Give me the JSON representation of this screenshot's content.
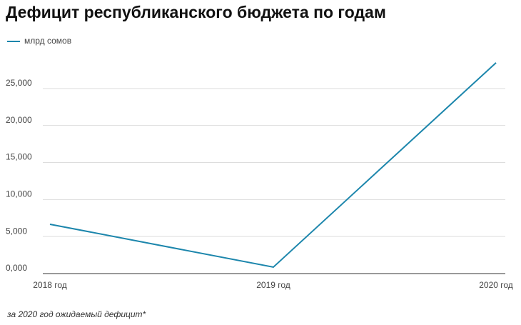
{
  "chart_data": {
    "type": "line",
    "title": "Дефицит республиканского бюджета по годам",
    "categories": [
      "2018 год",
      "2019 год",
      "2020 год"
    ],
    "series": [
      {
        "name": "млрд сомов",
        "color": "#1c86ac",
        "values": [
          6660,
          870,
          28470
        ]
      }
    ],
    "ylim": [
      0,
      30000
    ],
    "yticks": [
      {
        "value": 0,
        "label": "0,000"
      },
      {
        "value": 5000,
        "label": "5,000"
      },
      {
        "value": 10000,
        "label": "10,000"
      },
      {
        "value": 15000,
        "label": "15,000"
      },
      {
        "value": 20000,
        "label": "20,000"
      },
      {
        "value": 25000,
        "label": "25,000"
      }
    ],
    "grid": true,
    "legend": "top-left",
    "note": "за 2020 год ожидаемый дефицит*"
  }
}
